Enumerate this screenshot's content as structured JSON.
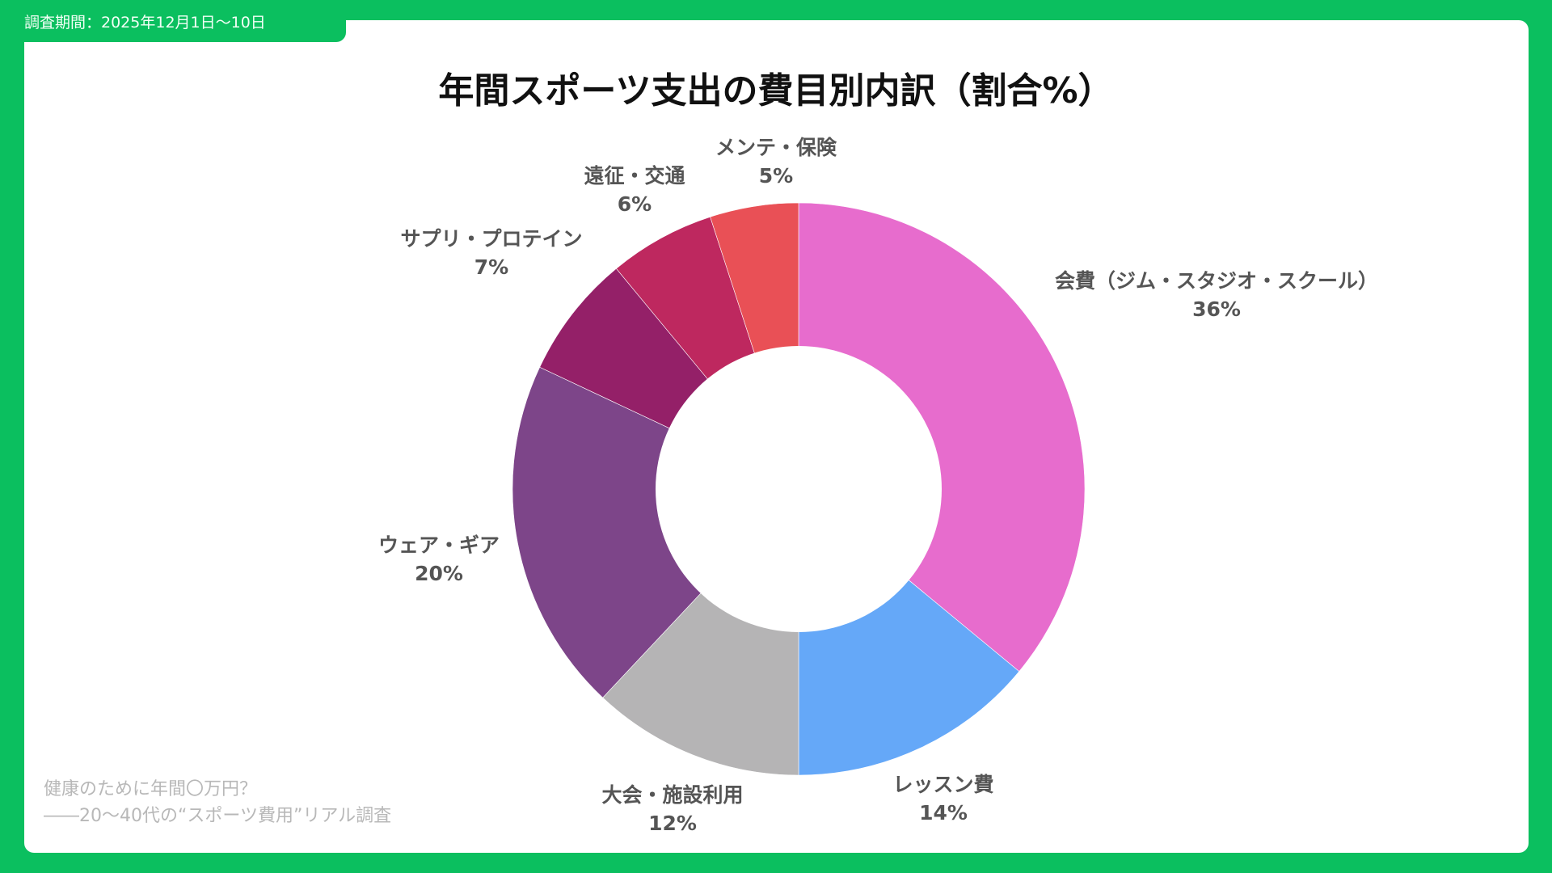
{
  "header": {
    "period": "調査期間：2025年12月1日〜10日"
  },
  "footer": {
    "line1": "健康のために年間〇万円？",
    "line2": "――20〜40代の“スポーツ費用”リアル調査"
  },
  "colors": {
    "brand_green": "#0BBF5F",
    "card": "#FFFFFF",
    "title": "#111111",
    "label": "#555555",
    "footer": "#B8B8B8"
  },
  "chart_data": {
    "type": "pie",
    "variant": "donut",
    "title": "年間スポーツ支出の費目別内訳（割合%）",
    "unit": "%",
    "start_angle": "12 o'clock, clockwise",
    "categories": [
      "会費（ジム・スタジオ・スクール）",
      "レッスン費",
      "大会・施設利用",
      "ウェア・ギア",
      "サプリ・プロテイン",
      "遠征・交通",
      "メンテ・保険"
    ],
    "values": [
      36,
      14,
      12,
      20,
      7,
      6,
      5
    ],
    "colors": [
      "#E76CCD",
      "#65A8F8",
      "#B5B4B5",
      "#7D4589",
      "#942068",
      "#BE285F",
      "#E95056"
    ],
    "labels": [
      {
        "name": "会費（ジム・スタジオ・スクール）",
        "pct": "36%"
      },
      {
        "name": "レッスン費",
        "pct": "14%"
      },
      {
        "name": "大会・施設利用",
        "pct": "12%"
      },
      {
        "name": "ウェア・ギア",
        "pct": "20%"
      },
      {
        "name": "サプリ・プロテイン",
        "pct": "7%"
      },
      {
        "name": "遠征・交通",
        "pct": "6%"
      },
      {
        "name": "メンテ・保険",
        "pct": "5%"
      }
    ],
    "legend": "none (direct labels)"
  }
}
